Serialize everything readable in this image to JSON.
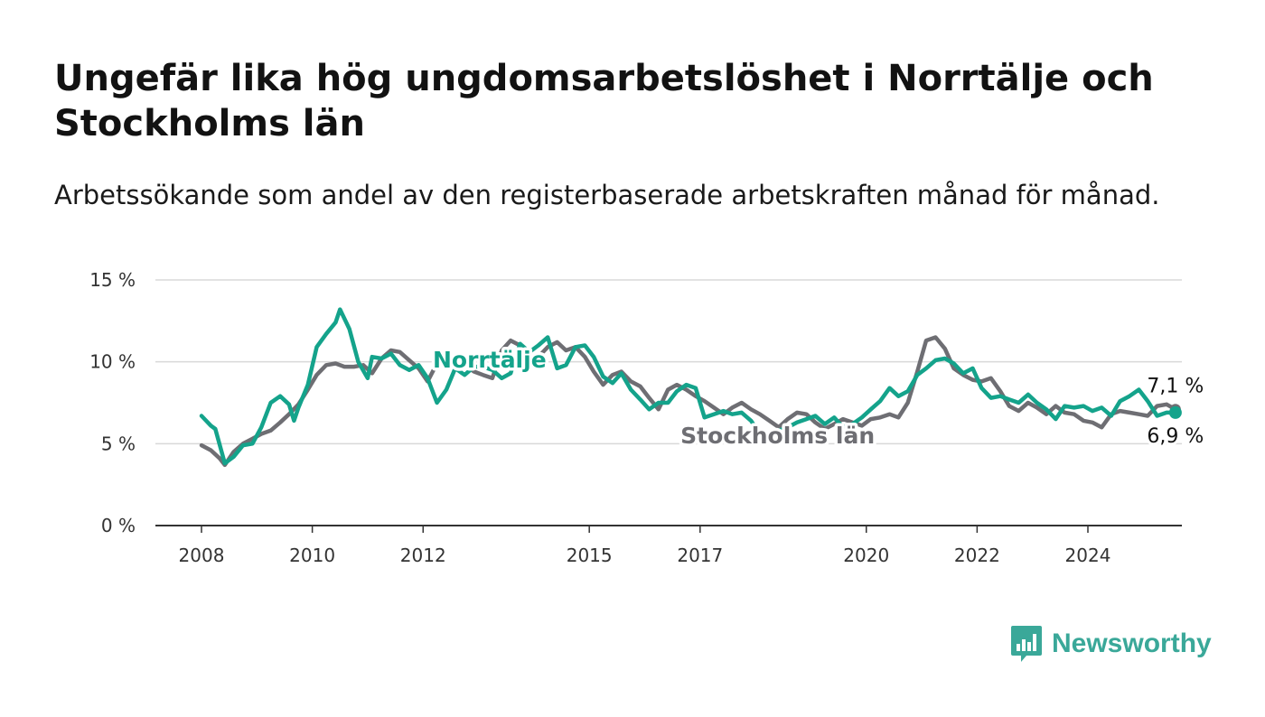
{
  "title": "Ungefär lika hög ungdomsarbetslöshet i Norrtälje och Stockholms län",
  "subtitle": "Arbetssökande som andel av den registerbaserade arbetskraften månad för månad.",
  "brand": {
    "name": "Newsworthy",
    "color": "#3aa899",
    "icon": "newsworthy-chart-icon"
  },
  "chart_data": {
    "type": "line",
    "title": "Ungefär lika hög ungdomsarbetslöshet i Norrtälje och Stockholms län",
    "subtitle": "Arbetssökande som andel av den registerbaserade arbetskraften månad för månad.",
    "ylim": [
      0,
      15
    ],
    "y_ticks": [
      0,
      5,
      10,
      15
    ],
    "y_tick_labels": [
      "0 %",
      "5 %",
      "10 %",
      "15 %"
    ],
    "x_ticks": [
      2008,
      2010,
      2012,
      2015,
      2017,
      2020,
      2022,
      2024
    ],
    "x_tick_labels": [
      "2008",
      "2010",
      "2012",
      "2015",
      "2017",
      "2020",
      "2022",
      "2024"
    ],
    "grid": "horizontal",
    "series": [
      {
        "name": "Stockholms län",
        "color": "#6e6e73",
        "end_label": "7,1 %",
        "points": [
          [
            2008.0,
            4.9
          ],
          [
            2008.17,
            4.6
          ],
          [
            2008.33,
            4.1
          ],
          [
            2008.42,
            3.7
          ],
          [
            2008.58,
            4.5
          ],
          [
            2008.75,
            5.0
          ],
          [
            2008.92,
            5.3
          ],
          [
            2009.08,
            5.6
          ],
          [
            2009.25,
            5.8
          ],
          [
            2009.42,
            6.3
          ],
          [
            2009.58,
            6.8
          ],
          [
            2009.75,
            7.4
          ],
          [
            2009.92,
            8.3
          ],
          [
            2010.08,
            9.2
          ],
          [
            2010.25,
            9.8
          ],
          [
            2010.42,
            9.9
          ],
          [
            2010.58,
            9.7
          ],
          [
            2010.75,
            9.7
          ],
          [
            2010.92,
            9.8
          ],
          [
            2011.08,
            9.3
          ],
          [
            2011.25,
            10.2
          ],
          [
            2011.42,
            10.7
          ],
          [
            2011.58,
            10.6
          ],
          [
            2011.75,
            10.1
          ],
          [
            2011.92,
            9.6
          ],
          [
            2012.08,
            8.8
          ],
          [
            2012.25,
            9.9
          ],
          [
            2012.42,
            10.5
          ],
          [
            2012.58,
            10.2
          ],
          [
            2012.75,
            9.8
          ],
          [
            2012.92,
            9.4
          ],
          [
            2013.08,
            9.2
          ],
          [
            2013.25,
            9.0
          ],
          [
            2013.42,
            10.7
          ],
          [
            2013.58,
            11.3
          ],
          [
            2013.75,
            11.0
          ],
          [
            2013.92,
            10.3
          ],
          [
            2014.08,
            10.3
          ],
          [
            2014.25,
            10.9
          ],
          [
            2014.42,
            11.2
          ],
          [
            2014.58,
            10.7
          ],
          [
            2014.75,
            10.9
          ],
          [
            2014.92,
            10.3
          ],
          [
            2015.08,
            9.4
          ],
          [
            2015.25,
            8.6
          ],
          [
            2015.42,
            9.2
          ],
          [
            2015.58,
            9.4
          ],
          [
            2015.75,
            8.8
          ],
          [
            2015.92,
            8.5
          ],
          [
            2016.08,
            7.8
          ],
          [
            2016.25,
            7.1
          ],
          [
            2016.42,
            8.3
          ],
          [
            2016.58,
            8.6
          ],
          [
            2016.75,
            8.3
          ],
          [
            2016.92,
            7.9
          ],
          [
            2017.08,
            7.6
          ],
          [
            2017.25,
            7.2
          ],
          [
            2017.42,
            6.8
          ],
          [
            2017.58,
            7.2
          ],
          [
            2017.75,
            7.5
          ],
          [
            2017.92,
            7.1
          ],
          [
            2018.08,
            6.8
          ],
          [
            2018.25,
            6.4
          ],
          [
            2018.42,
            6.0
          ],
          [
            2018.58,
            6.5
          ],
          [
            2018.75,
            6.9
          ],
          [
            2018.92,
            6.8
          ],
          [
            2019.08,
            6.3
          ],
          [
            2019.25,
            5.9
          ],
          [
            2019.42,
            6.2
          ],
          [
            2019.58,
            6.5
          ],
          [
            2019.75,
            6.3
          ],
          [
            2019.92,
            6.1
          ],
          [
            2020.08,
            6.5
          ],
          [
            2020.25,
            6.6
          ],
          [
            2020.42,
            6.8
          ],
          [
            2020.58,
            6.6
          ],
          [
            2020.75,
            7.5
          ],
          [
            2020.92,
            9.4
          ],
          [
            2021.08,
            11.3
          ],
          [
            2021.25,
            11.5
          ],
          [
            2021.42,
            10.8
          ],
          [
            2021.58,
            9.6
          ],
          [
            2021.75,
            9.2
          ],
          [
            2021.92,
            8.9
          ],
          [
            2022.08,
            8.8
          ],
          [
            2022.25,
            9.0
          ],
          [
            2022.42,
            8.2
          ],
          [
            2022.58,
            7.3
          ],
          [
            2022.75,
            7.0
          ],
          [
            2022.92,
            7.5
          ],
          [
            2023.08,
            7.2
          ],
          [
            2023.25,
            6.8
          ],
          [
            2023.42,
            7.3
          ],
          [
            2023.58,
            6.9
          ],
          [
            2023.75,
            6.8
          ],
          [
            2023.92,
            6.4
          ],
          [
            2024.08,
            6.3
          ],
          [
            2024.25,
            6.0
          ],
          [
            2024.42,
            6.8
          ],
          [
            2024.58,
            7.0
          ],
          [
            2024.75,
            6.9
          ],
          [
            2024.92,
            6.8
          ],
          [
            2025.08,
            6.7
          ],
          [
            2025.25,
            7.3
          ],
          [
            2025.42,
            7.4
          ],
          [
            2025.58,
            7.1
          ]
        ]
      },
      {
        "name": "Norrtälje",
        "color": "#14a38b",
        "end_label": "6,9 %",
        "points": [
          [
            2008.0,
            6.7
          ],
          [
            2008.17,
            6.1
          ],
          [
            2008.25,
            5.9
          ],
          [
            2008.42,
            3.8
          ],
          [
            2008.58,
            4.2
          ],
          [
            2008.75,
            4.9
          ],
          [
            2008.92,
            5.0
          ],
          [
            2009.08,
            6.0
          ],
          [
            2009.25,
            7.5
          ],
          [
            2009.42,
            7.9
          ],
          [
            2009.58,
            7.4
          ],
          [
            2009.67,
            6.4
          ],
          [
            2009.75,
            7.2
          ],
          [
            2009.92,
            8.6
          ],
          [
            2010.08,
            10.9
          ],
          [
            2010.25,
            11.7
          ],
          [
            2010.42,
            12.4
          ],
          [
            2010.5,
            13.2
          ],
          [
            2010.67,
            12.0
          ],
          [
            2010.83,
            10.0
          ],
          [
            2011.0,
            9.0
          ],
          [
            2011.08,
            10.3
          ],
          [
            2011.25,
            10.2
          ],
          [
            2011.42,
            10.5
          ],
          [
            2011.58,
            9.8
          ],
          [
            2011.75,
            9.5
          ],
          [
            2011.92,
            9.8
          ],
          [
            2012.08,
            9.0
          ],
          [
            2012.25,
            7.5
          ],
          [
            2012.42,
            8.3
          ],
          [
            2012.58,
            9.6
          ],
          [
            2012.75,
            9.2
          ],
          [
            2012.92,
            9.7
          ],
          [
            2013.08,
            9.7
          ],
          [
            2013.25,
            9.5
          ],
          [
            2013.42,
            9.0
          ],
          [
            2013.58,
            9.3
          ],
          [
            2013.75,
            11.1
          ],
          [
            2013.92,
            10.6
          ],
          [
            2014.08,
            11.0
          ],
          [
            2014.25,
            11.5
          ],
          [
            2014.42,
            9.6
          ],
          [
            2014.58,
            9.8
          ],
          [
            2014.75,
            10.9
          ],
          [
            2014.92,
            11.0
          ],
          [
            2015.08,
            10.3
          ],
          [
            2015.25,
            9.1
          ],
          [
            2015.42,
            8.7
          ],
          [
            2015.58,
            9.3
          ],
          [
            2015.75,
            8.3
          ],
          [
            2015.92,
            7.7
          ],
          [
            2016.08,
            7.1
          ],
          [
            2016.25,
            7.5
          ],
          [
            2016.42,
            7.5
          ],
          [
            2016.58,
            8.2
          ],
          [
            2016.75,
            8.6
          ],
          [
            2016.92,
            8.4
          ],
          [
            2017.08,
            6.6
          ],
          [
            2017.25,
            6.8
          ],
          [
            2017.42,
            7.0
          ],
          [
            2017.58,
            6.8
          ],
          [
            2017.75,
            6.9
          ],
          [
            2017.92,
            6.4
          ],
          [
            2018.08,
            5.6
          ],
          [
            2018.25,
            5.2
          ],
          [
            2018.42,
            5.8
          ],
          [
            2018.58,
            6.0
          ],
          [
            2018.75,
            6.3
          ],
          [
            2018.92,
            6.5
          ],
          [
            2019.08,
            6.7
          ],
          [
            2019.25,
            6.2
          ],
          [
            2019.42,
            6.6
          ],
          [
            2019.58,
            6.0
          ],
          [
            2019.75,
            6.2
          ],
          [
            2019.92,
            6.6
          ],
          [
            2020.08,
            7.1
          ],
          [
            2020.25,
            7.6
          ],
          [
            2020.42,
            8.4
          ],
          [
            2020.58,
            7.9
          ],
          [
            2020.75,
            8.2
          ],
          [
            2020.92,
            9.2
          ],
          [
            2021.08,
            9.6
          ],
          [
            2021.25,
            10.1
          ],
          [
            2021.42,
            10.2
          ],
          [
            2021.58,
            9.9
          ],
          [
            2021.75,
            9.3
          ],
          [
            2021.92,
            9.6
          ],
          [
            2022.08,
            8.4
          ],
          [
            2022.25,
            7.8
          ],
          [
            2022.42,
            7.9
          ],
          [
            2022.58,
            7.7
          ],
          [
            2022.75,
            7.5
          ],
          [
            2022.92,
            8.0
          ],
          [
            2023.08,
            7.5
          ],
          [
            2023.25,
            7.1
          ],
          [
            2023.42,
            6.5
          ],
          [
            2023.58,
            7.3
          ],
          [
            2023.75,
            7.2
          ],
          [
            2023.92,
            7.3
          ],
          [
            2024.08,
            7.0
          ],
          [
            2024.25,
            7.2
          ],
          [
            2024.42,
            6.7
          ],
          [
            2024.58,
            7.6
          ],
          [
            2024.75,
            7.9
          ],
          [
            2024.92,
            8.3
          ],
          [
            2025.08,
            7.6
          ],
          [
            2025.25,
            6.7
          ],
          [
            2025.42,
            6.9
          ],
          [
            2025.58,
            6.9
          ]
        ]
      }
    ],
    "annotations": [
      {
        "text": "Norrtälje",
        "series": "Norrtälje",
        "x": 2013.2,
        "y": 10.0
      },
      {
        "text": "Stockholms län",
        "series": "Stockholms län",
        "x": 2018.4,
        "y": 5.5
      }
    ]
  }
}
